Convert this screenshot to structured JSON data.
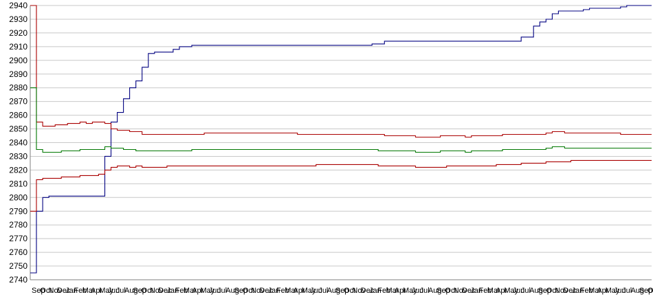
{
  "chart_data": {
    "type": "line",
    "title": "",
    "xlabel": "",
    "ylabel": "",
    "ylim": [
      2740,
      2940
    ],
    "yticks": [
      2740,
      2750,
      2760,
      2770,
      2780,
      2790,
      2800,
      2810,
      2820,
      2830,
      2840,
      2850,
      2860,
      2870,
      2880,
      2890,
      2900,
      2910,
      2920,
      2930,
      2940
    ],
    "grid": true,
    "legend": "none",
    "x_tick_labels_note": "overlapping, illegible",
    "xticks": [
      "Sep",
      "Oct",
      "Nov",
      "Dec",
      "Jan",
      "Feb",
      "Mar",
      "Apr",
      "May",
      "Jun",
      "Jul",
      "Aug"
    ],
    "x": [
      0,
      1,
      2,
      3,
      4,
      5,
      6,
      7,
      8,
      9,
      10,
      11,
      12,
      13,
      14,
      15,
      16,
      17,
      18,
      19,
      20,
      21,
      22,
      23,
      24,
      25,
      26,
      27,
      28,
      29,
      30,
      31,
      32,
      33,
      34,
      35,
      36,
      37,
      38,
      39,
      40,
      41,
      42,
      43,
      44,
      45,
      46,
      47,
      48,
      49,
      50,
      51,
      52,
      53,
      54,
      55,
      56,
      57,
      58,
      59,
      60,
      61,
      62,
      63,
      64,
      65,
      66,
      67,
      68,
      69,
      70,
      71,
      72,
      73,
      74,
      75,
      76,
      77,
      78,
      79,
      80,
      81,
      82,
      83,
      84,
      85,
      86,
      87,
      88,
      89,
      90,
      91,
      92,
      93,
      94,
      95,
      96,
      97,
      98,
      99,
      100
    ],
    "series": [
      {
        "color": "#000080",
        "values": [
          2745,
          2790,
          2800,
          2801,
          2801,
          2801,
          2801,
          2801,
          2801,
          2801,
          2801,
          2801,
          2830,
          2855,
          2862,
          2872,
          2880,
          2885,
          2895,
          2905,
          2906,
          2906,
          2906,
          2908,
          2910,
          2910,
          2911,
          2911,
          2911,
          2911,
          2911,
          2911,
          2911,
          2911,
          2911,
          2911,
          2911,
          2911,
          2911,
          2911,
          2911,
          2911,
          2911,
          2911,
          2911,
          2911,
          2911,
          2911,
          2911,
          2911,
          2911,
          2911,
          2911,
          2911,
          2911,
          2912,
          2912,
          2914,
          2914,
          2914,
          2914,
          2914,
          2914,
          2914,
          2914,
          2914,
          2914,
          2914,
          2914,
          2914,
          2914,
          2914,
          2914,
          2914,
          2914,
          2914,
          2914,
          2914,
          2914,
          2917,
          2917,
          2925,
          2928,
          2930,
          2934,
          2936,
          2936,
          2936,
          2936,
          2937,
          2938,
          2938,
          2938,
          2938,
          2938,
          2939,
          2940,
          2940,
          2940,
          2940,
          2940
        ]
      },
      {
        "color": "#aa0000",
        "values": [
          2940,
          2855,
          2852,
          2852,
          2853,
          2853,
          2854,
          2854,
          2855,
          2854,
          2855,
          2855,
          2854,
          2850,
          2849,
          2849,
          2848,
          2848,
          2846,
          2846,
          2846,
          2846,
          2846,
          2846,
          2846,
          2846,
          2846,
          2846,
          2847,
          2847,
          2847,
          2847,
          2847,
          2847,
          2847,
          2847,
          2847,
          2847,
          2847,
          2847,
          2847,
          2847,
          2847,
          2846,
          2846,
          2846,
          2846,
          2846,
          2846,
          2846,
          2846,
          2846,
          2846,
          2846,
          2846,
          2846,
          2846,
          2845,
          2845,
          2845,
          2845,
          2845,
          2844,
          2844,
          2844,
          2844,
          2845,
          2845,
          2845,
          2845,
          2844,
          2845,
          2845,
          2845,
          2845,
          2845,
          2846,
          2846,
          2846,
          2846,
          2846,
          2846,
          2846,
          2847,
          2848,
          2848,
          2847,
          2847,
          2847,
          2847,
          2847,
          2847,
          2847,
          2847,
          2847,
          2846,
          2846,
          2846,
          2846,
          2846,
          2846
        ]
      },
      {
        "color": "#007700",
        "values": [
          2880,
          2835,
          2833,
          2833,
          2833,
          2834,
          2834,
          2834,
          2835,
          2835,
          2835,
          2835,
          2837,
          2836,
          2836,
          2835,
          2835,
          2834,
          2834,
          2834,
          2834,
          2834,
          2834,
          2834,
          2834,
          2834,
          2835,
          2835,
          2835,
          2835,
          2835,
          2835,
          2835,
          2835,
          2835,
          2835,
          2835,
          2835,
          2835,
          2835,
          2835,
          2835,
          2835,
          2835,
          2835,
          2835,
          2835,
          2835,
          2835,
          2835,
          2835,
          2835,
          2835,
          2835,
          2835,
          2835,
          2834,
          2834,
          2834,
          2834,
          2834,
          2834,
          2833,
          2833,
          2833,
          2833,
          2834,
          2834,
          2834,
          2834,
          2833,
          2834,
          2834,
          2834,
          2834,
          2834,
          2835,
          2835,
          2835,
          2835,
          2835,
          2835,
          2835,
          2836,
          2837,
          2837,
          2836,
          2836,
          2836,
          2836,
          2836,
          2836,
          2836,
          2836,
          2836,
          2836,
          2836,
          2836,
          2836,
          2836,
          2836
        ]
      },
      {
        "color": "#aa0000",
        "values": [
          2790,
          2813,
          2814,
          2814,
          2814,
          2815,
          2815,
          2815,
          2816,
          2816,
          2816,
          2817,
          2820,
          2822,
          2823,
          2823,
          2822,
          2823,
          2822,
          2822,
          2822,
          2822,
          2823,
          2823,
          2823,
          2823,
          2823,
          2823,
          2823,
          2823,
          2823,
          2823,
          2823,
          2823,
          2823,
          2823,
          2823,
          2823,
          2823,
          2823,
          2823,
          2823,
          2823,
          2823,
          2823,
          2823,
          2824,
          2824,
          2824,
          2824,
          2824,
          2824,
          2824,
          2824,
          2824,
          2824,
          2823,
          2823,
          2823,
          2823,
          2823,
          2823,
          2822,
          2822,
          2822,
          2822,
          2822,
          2823,
          2823,
          2823,
          2823,
          2823,
          2823,
          2823,
          2823,
          2824,
          2824,
          2824,
          2824,
          2825,
          2825,
          2825,
          2825,
          2826,
          2826,
          2826,
          2826,
          2827,
          2827,
          2827,
          2827,
          2827,
          2827,
          2827,
          2827,
          2827,
          2827,
          2827,
          2827,
          2827,
          2827
        ]
      }
    ]
  }
}
